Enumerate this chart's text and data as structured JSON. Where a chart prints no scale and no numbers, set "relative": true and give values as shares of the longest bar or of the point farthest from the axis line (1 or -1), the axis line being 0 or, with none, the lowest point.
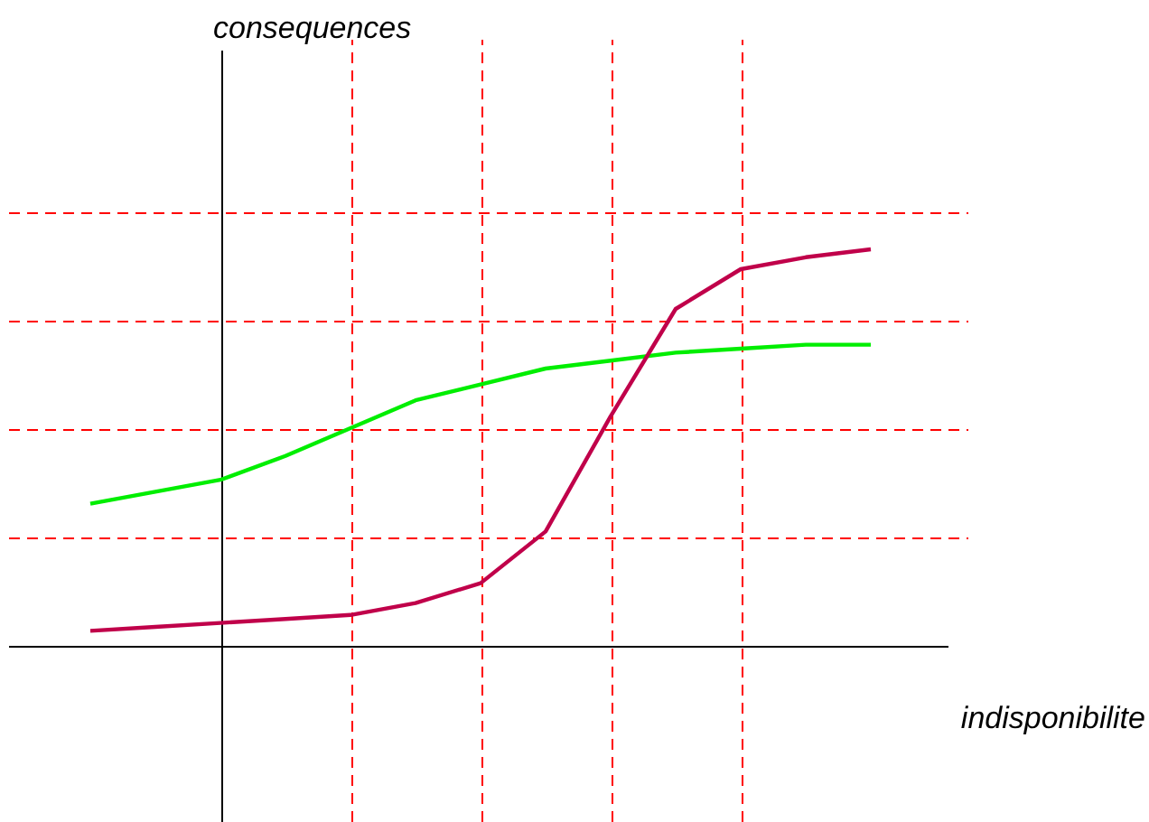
{
  "chart_data": {
    "type": "line",
    "relative": true,
    "annotations": [
      "consequences",
      "indisponibilite"
    ],
    "categories": [
      null,
      null,
      null,
      null,
      null,
      null,
      null,
      null,
      null,
      null,
      null,
      null,
      null
    ],
    "series": [
      {
        "color": "#00ee00",
        "values": [
          0.36,
          0.39,
          0.42,
          0.48,
          0.55,
          0.62,
          0.66,
          0.7,
          0.72,
          0.74,
          0.75,
          0.76,
          0.76
        ]
      },
      {
        "color": "#c0004a",
        "values": [
          0.04,
          0.05,
          0.06,
          0.07,
          0.08,
          0.11,
          0.16,
          0.29,
          0.58,
          0.85,
          0.95,
          0.98,
          1.0
        ]
      }
    ],
    "grid": true,
    "marker": "none",
    "line_style": "solid"
  }
}
